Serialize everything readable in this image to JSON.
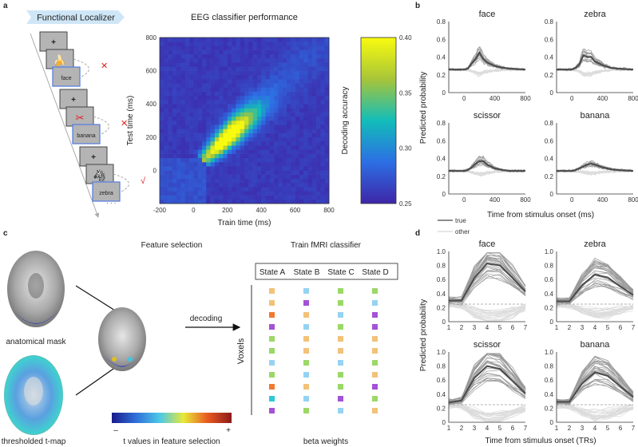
{
  "panels": {
    "a": "a",
    "b": "b",
    "c": "c",
    "d": "d"
  },
  "panel_a": {
    "banner": "Functional Localizer",
    "trials": [
      {
        "cue": "face",
        "image": "banana",
        "feedback": "✕"
      },
      {
        "cue": "banana",
        "image": "scissor",
        "feedback": "✕"
      },
      {
        "cue": "zebra",
        "image": "zebra",
        "feedback": "√"
      }
    ],
    "fixation": "+",
    "ellipsis": "· · ·"
  },
  "panel_c": {
    "feature_selection_title": "Feature selection",
    "anatomical_mask": "anatomical mask",
    "thresholded_tmap": "thresholded t-map",
    "decoding": "decoding",
    "colorbar_label": "t values in feature selection",
    "colorbar_min": "–",
    "colorbar_max": "+",
    "classifier_title": "Train fMRI classifier",
    "states": [
      "State A",
      "State B",
      "State C",
      "State D"
    ],
    "voxels_label": "Voxels",
    "beta_label": "beta weights",
    "weight_colors": {
      "O": "#f2c27a",
      "B": "#96d3f2",
      "G": "#9cd868",
      "P": "#a452d6",
      "R": "#f07a30",
      "C": "#2ec8d8"
    },
    "weight_grid": [
      [
        "O",
        "B",
        "G",
        "G"
      ],
      [
        "O",
        "P",
        "G",
        "B"
      ],
      [
        "R",
        "O",
        "B",
        "P"
      ],
      [
        "P",
        "B",
        "G",
        "P"
      ],
      [
        "G",
        "O",
        "O",
        "O"
      ],
      [
        "G",
        "O",
        "O",
        "O"
      ],
      [
        "B",
        "G",
        "B",
        "G"
      ],
      [
        "G",
        "B",
        "G",
        "O"
      ],
      [
        "R",
        "O",
        "G",
        "P"
      ],
      [
        "C",
        "B",
        "P",
        "G"
      ],
      [
        "P",
        "G",
        "B",
        "O"
      ]
    ]
  },
  "chart_data": [
    {
      "type": "heatmap",
      "title": "EEG classifier performance",
      "xlabel": "Train time (ms)",
      "ylabel": "Test time (ms)",
      "xlim": [
        -200,
        800
      ],
      "ylim": [
        -200,
        800
      ],
      "xticks": [
        "-200",
        "0",
        "200",
        "400",
        "600",
        "800"
      ],
      "yticks": [
        "0",
        "200",
        "400",
        "600",
        "800"
      ],
      "colorbar_label": "Decoding accuracy",
      "clim": [
        0.25,
        0.4
      ],
      "colorbar_ticks": [
        "0.40",
        "0.35",
        "0.30",
        "0.25"
      ],
      "peak": {
        "train": 200,
        "test": 200,
        "value": 0.4
      }
    },
    {
      "type": "line",
      "xlabel": "Time from stimulus onset (ms)",
      "ylabel": "Predicted probability",
      "xlim": [
        -200,
        800
      ],
      "ylim": [
        0,
        0.8
      ],
      "xticks": [
        "0",
        "400",
        "800"
      ],
      "yticks": [
        "0",
        "0.2",
        "0.4",
        "0.6",
        "0.8"
      ],
      "legend": [
        "true",
        "other"
      ],
      "x": [
        -200,
        0,
        50,
        100,
        150,
        200,
        250,
        300,
        400,
        500,
        600,
        800
      ],
      "series": [
        {
          "name": "face",
          "values": [
            0.26,
            0.26,
            0.27,
            0.33,
            0.38,
            0.45,
            0.38,
            0.34,
            0.3,
            0.28,
            0.27,
            0.26
          ]
        },
        {
          "name": "zebra",
          "values": [
            0.26,
            0.26,
            0.28,
            0.32,
            0.42,
            0.4,
            0.4,
            0.35,
            0.31,
            0.28,
            0.27,
            0.26
          ]
        },
        {
          "name": "scissor",
          "values": [
            0.26,
            0.26,
            0.27,
            0.3,
            0.34,
            0.37,
            0.37,
            0.33,
            0.29,
            0.27,
            0.26,
            0.26
          ]
        },
        {
          "name": "banana",
          "values": [
            0.26,
            0.26,
            0.27,
            0.29,
            0.31,
            0.33,
            0.34,
            0.33,
            0.3,
            0.28,
            0.27,
            0.26
          ]
        }
      ]
    },
    {
      "type": "line",
      "xlabel": "Time from stimulus onset (TRs)",
      "ylabel": "Predicted probability",
      "xlim": [
        1,
        7
      ],
      "ylim": [
        0,
        1.0
      ],
      "xticks": [
        "1",
        "2",
        "3",
        "4",
        "5",
        "6",
        "7"
      ],
      "yticks": [
        "0",
        "0.2",
        "0.4",
        "0.6",
        "0.8",
        "1.0"
      ],
      "chance": 0.25,
      "x": [
        1,
        2,
        3,
        4,
        5,
        6,
        7
      ],
      "series": [
        {
          "name": "face",
          "values": [
            0.3,
            0.3,
            0.62,
            0.83,
            0.8,
            0.62,
            0.43
          ]
        },
        {
          "name": "zebra",
          "values": [
            0.29,
            0.29,
            0.52,
            0.67,
            0.63,
            0.5,
            0.38
          ]
        },
        {
          "name": "scissor",
          "values": [
            0.28,
            0.31,
            0.63,
            0.8,
            0.76,
            0.59,
            0.41
          ]
        },
        {
          "name": "banana",
          "values": [
            0.29,
            0.29,
            0.55,
            0.71,
            0.66,
            0.51,
            0.36
          ]
        }
      ]
    }
  ]
}
